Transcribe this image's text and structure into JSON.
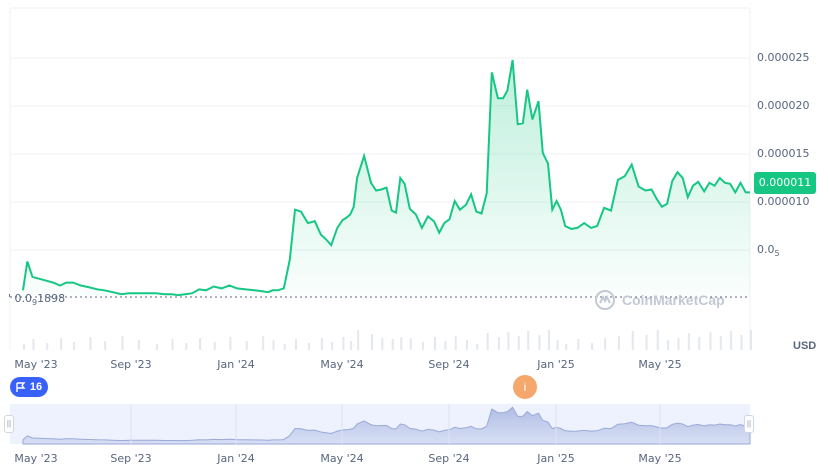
{
  "chart_data": {
    "type": "area",
    "currency": "USD",
    "current_price_label": "0.000011",
    "low_label": {
      "prefix": "0.0",
      "subscript": "9",
      "suffix": "1898"
    },
    "y_small_label": {
      "prefix": "0.0",
      "subscript": "5",
      "suffix": ""
    },
    "y_ticks": [
      "0.000025",
      "0.000020",
      "0.000015",
      "0.000010"
    ],
    "y_tick_values": [
      2.5e-05,
      2e-05,
      1.5e-05,
      1e-05
    ],
    "x_ticks": [
      "May '23",
      "Sep '23",
      "Jan '24",
      "May '24",
      "Sep '24",
      "Jan '25",
      "May '25"
    ],
    "nav_ticks": [
      "May '23",
      "Sep '23",
      "Jan '24",
      "May '24",
      "Sep '24",
      "Jan '25",
      "May '25"
    ],
    "series": [
      {
        "x": [
          "2023-05-01",
          "2023-05-06",
          "2023-05-12",
          "2023-05-20",
          "2023-05-28",
          "2023-06-05",
          "2023-06-13",
          "2023-06-20",
          "2023-06-28",
          "2023-07-07",
          "2023-07-17",
          "2023-07-26",
          "2023-08-03",
          "2023-08-13",
          "2023-08-23",
          "2023-09-01",
          "2023-09-11",
          "2023-09-22",
          "2023-10-02",
          "2023-10-12",
          "2023-10-20",
          "2023-10-28",
          "2023-11-05",
          "2023-11-13",
          "2023-11-21",
          "2023-11-29",
          "2023-12-08",
          "2023-12-17",
          "2023-12-26",
          "2024-01-04",
          "2024-01-14",
          "2024-01-24",
          "2024-02-02",
          "2024-02-09",
          "2024-02-14",
          "2024-02-20",
          "2024-02-27",
          "2024-03-05",
          "2024-03-11",
          "2024-03-18",
          "2024-03-26",
          "2024-04-03",
          "2024-04-10",
          "2024-04-16",
          "2024-04-22",
          "2024-04-29",
          "2024-05-05",
          "2024-05-10",
          "2024-05-14",
          "2024-05-18",
          "2024-05-22",
          "2024-05-30",
          "2024-06-07",
          "2024-06-13",
          "2024-06-19",
          "2024-06-25",
          "2024-07-01",
          "2024-07-06",
          "2024-07-11",
          "2024-07-16",
          "2024-07-22",
          "2024-07-29",
          "2024-08-05",
          "2024-08-12",
          "2024-08-19",
          "2024-08-25",
          "2024-08-31",
          "2024-09-06",
          "2024-09-12",
          "2024-09-18",
          "2024-09-25",
          "2024-10-01",
          "2024-10-07",
          "2024-10-13",
          "2024-10-19",
          "2024-10-25",
          "2024-11-01",
          "2024-11-07",
          "2024-11-12",
          "2024-11-18",
          "2024-11-24",
          "2024-11-30",
          "2024-12-05",
          "2024-12-11",
          "2024-12-18",
          "2024-12-23",
          "2024-12-29",
          "2025-01-03",
          "2025-01-08",
          "2025-01-13",
          "2025-01-18",
          "2025-01-25",
          "2025-02-01",
          "2025-02-09",
          "2025-02-17",
          "2025-02-24",
          "2025-03-04",
          "2025-03-12",
          "2025-03-20",
          "2025-03-28",
          "2025-04-05",
          "2025-04-13",
          "2025-04-21",
          "2025-04-28",
          "2025-05-04",
          "2025-05-10",
          "2025-05-16",
          "2025-05-22",
          "2025-05-28",
          "2025-06-03",
          "2025-06-09",
          "2025-06-15",
          "2025-06-21",
          "2025-06-28",
          "2025-07-04",
          "2025-07-10",
          "2025-07-16",
          "2025-07-22",
          "2025-07-28",
          "2025-08-03",
          "2025-08-09",
          "2025-08-15",
          "2025-08-20"
        ],
        "y": [
          8e-07,
          3.8e-06,
          2.2e-06,
          2e-06,
          1.8e-06,
          1.6e-06,
          1.3e-06,
          1.6e-06,
          1.6e-06,
          1.3e-06,
          1.1e-06,
          9e-07,
          8e-07,
          6e-07,
          4e-07,
          5e-07,
          5e-07,
          5e-07,
          5e-07,
          4e-07,
          4e-07,
          3e-07,
          4e-07,
          5e-07,
          9e-07,
          8e-07,
          1.2e-06,
          1e-06,
          1.3e-06,
          1e-06,
          9e-07,
          8e-07,
          7e-07,
          6e-07,
          8e-07,
          8e-07,
          1e-06,
          4e-06,
          9.2e-06,
          9e-06,
          7.8e-06,
          8e-06,
          6.6e-06,
          6.1e-06,
          5.5e-06,
          7.3e-06,
          8.1e-06,
          8.4e-06,
          8.7e-06,
          9.5e-06,
          1.25e-05,
          1.48e-05,
          1.2e-05,
          1.12e-05,
          1.13e-05,
          1.15e-05,
          9.1e-06,
          8.9e-06,
          1.25e-05,
          1.19e-05,
          9.3e-06,
          8.7e-06,
          7.3e-06,
          8.5e-06,
          8e-06,
          6.8e-06,
          7.8e-06,
          8.2e-06,
          1.01e-05,
          9.2e-06,
          9.7e-06,
          1.08e-05,
          9e-06,
          8.8e-06,
          1.09e-05,
          2.35e-05,
          2.08e-05,
          2.08e-05,
          2.16e-05,
          2.48e-05,
          1.81e-05,
          1.82e-05,
          2.17e-05,
          1.86e-05,
          2.05e-05,
          1.51e-05,
          1.4e-05,
          9.2e-06,
          1.01e-05,
          9.2e-06,
          7.5e-06,
          7.2e-06,
          7.3e-06,
          7.8e-06,
          7.3e-06,
          7.5e-06,
          9.4e-06,
          9.1e-06,
          1.23e-05,
          1.27e-05,
          1.39e-05,
          1.16e-05,
          1.12e-05,
          1.13e-05,
          1.03e-05,
          9.5e-06,
          9.8e-06,
          1.22e-05,
          1.31e-05,
          1.25e-05,
          1.05e-05,
          1.17e-05,
          1.21e-05,
          1.11e-05,
          1.2e-05,
          1.17e-05,
          1.25e-05,
          1.2e-05,
          1.19e-05,
          1.1e-05,
          1.2e-05,
          1.1e-05,
          1.1e-05
        ]
      }
    ],
    "grid": true,
    "line_color": "#16c784",
    "fill_color": "#16c784",
    "watermark": "CoinMarketCap",
    "events": [
      {
        "type": "flag",
        "label": "16",
        "color": "#3861fb"
      },
      {
        "type": "info",
        "label": "i",
        "color": "#f5a76c"
      }
    ]
  }
}
